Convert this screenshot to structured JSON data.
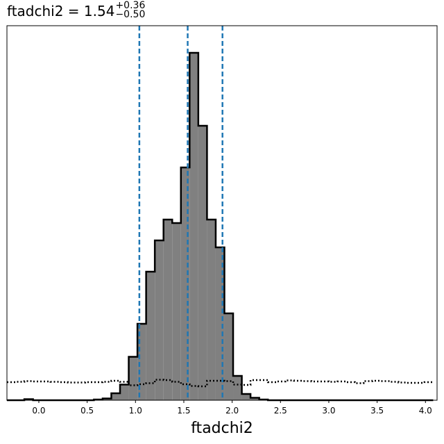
{
  "chart_data": {
    "type": "histogram",
    "parameter": "ftadchi2",
    "title": {
      "prefix": "ftadchi2 = 1.54",
      "plus": "+0.36",
      "minus": "−0.50"
    },
    "xlabel": "ftadchi2",
    "xlim": [
      -0.33,
      4.12
    ],
    "ylim": [
      0,
      1.0
    ],
    "xticks": [
      0.0,
      0.5,
      1.0,
      1.5,
      2.0,
      2.5,
      3.0,
      3.5,
      4.0
    ],
    "xtick_labels": [
      "0.0",
      "0.5",
      "1.0",
      "1.5",
      "2.0",
      "2.5",
      "3.0",
      "3.5",
      "4.0"
    ],
    "y_axis_labels_shown": false,
    "bin_edges": [
      -0.33,
      -0.24,
      -0.15,
      -0.06,
      0.03,
      0.12,
      0.21,
      0.3,
      0.39,
      0.48,
      0.57,
      0.66,
      0.75,
      0.84,
      0.93,
      1.02,
      1.11,
      1.2,
      1.29,
      1.38,
      1.47,
      1.56,
      1.65,
      1.74,
      1.83,
      1.92,
      2.01,
      2.1,
      2.19,
      2.28,
      2.37,
      2.46,
      2.55,
      2.64,
      2.73,
      2.82,
      2.91,
      3.0,
      3.09,
      3.18,
      3.27,
      3.36,
      3.45,
      3.54,
      3.63,
      3.72,
      3.81,
      3.9,
      3.99,
      4.08
    ],
    "counts": [
      0,
      0.0,
      0.003,
      0.0,
      0.0,
      0.0,
      0.0,
      0.0,
      0.0,
      0.0,
      0.002,
      0.005,
      0.02,
      0.045,
      0.125,
      0.22,
      0.37,
      0.46,
      0.52,
      0.51,
      0.67,
      1.0,
      0.79,
      0.52,
      0.44,
      0.25,
      0.07,
      0.018,
      0.007,
      0.002,
      0.0,
      0.0,
      0.0,
      0.0,
      0.0,
      0.0,
      0.0,
      0.0,
      0.0,
      0.0,
      0.0,
      0.0,
      0.0,
      0.0,
      0.0,
      0.0,
      0.0,
      0.0,
      0.0
    ],
    "fill_color": "#808080",
    "edge_color": "#000000",
    "prior_line": {
      "style": "dotted",
      "color": "#000000",
      "x": [
        -0.33,
        -0.24,
        -0.15,
        -0.06,
        0.03,
        0.12,
        0.21,
        0.3,
        0.39,
        0.48,
        0.57,
        0.66,
        0.75,
        0.84,
        0.93,
        1.02,
        1.11,
        1.2,
        1.29,
        1.38,
        1.47,
        1.56,
        1.65,
        1.74,
        1.83,
        1.92,
        2.01,
        2.1,
        2.19,
        2.28,
        2.37,
        2.46,
        2.55,
        2.64,
        2.73,
        2.82,
        2.91,
        3.0,
        3.09,
        3.18,
        3.27,
        3.36,
        3.45,
        3.54,
        3.63,
        3.72,
        3.81,
        3.9,
        3.99,
        4.08
      ],
      "y": [
        0.052,
        0.053,
        0.055,
        0.054,
        0.054,
        0.053,
        0.052,
        0.051,
        0.051,
        0.052,
        0.052,
        0.053,
        0.056,
        0.053,
        0.043,
        0.046,
        0.049,
        0.059,
        0.058,
        0.053,
        0.046,
        0.041,
        0.04,
        0.056,
        0.056,
        0.055,
        0.045,
        0.044,
        0.058,
        0.058,
        0.052,
        0.054,
        0.057,
        0.056,
        0.055,
        0.054,
        0.054,
        0.053,
        0.054,
        0.052,
        0.049,
        0.055,
        0.056,
        0.055,
        0.053,
        0.051,
        0.05,
        0.05,
        0.052,
        0.052
      ]
    },
    "quantile_lines": {
      "values": [
        1.04,
        1.54,
        1.9
      ],
      "color": "#1f77b4",
      "style": "dashed"
    },
    "grid": false
  }
}
